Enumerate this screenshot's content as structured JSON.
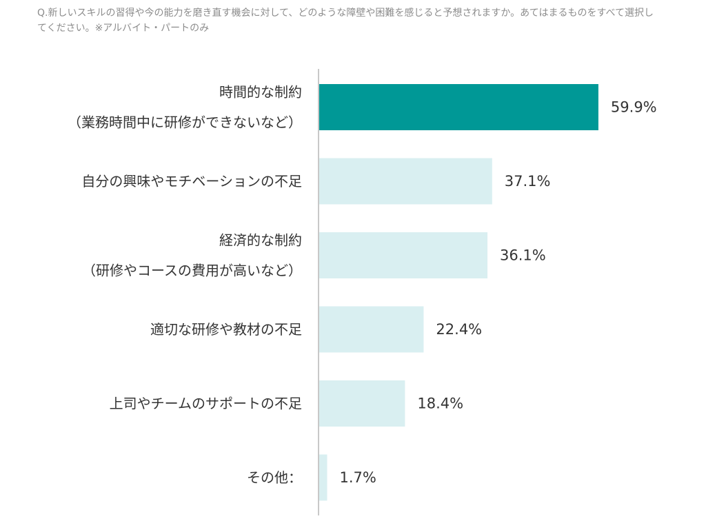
{
  "question": "Q.新しいスキルの習得や今の能力を磨き直す機会に対して、どのような障壁や困難を感じると予想されますか。あてはまるものをすべて選択してください。※アルバイト・パートのみ",
  "colors": {
    "highlight": "#009896",
    "default": "#d9eff1",
    "axis": "#c8c8c8"
  },
  "chart_data": {
    "type": "bar",
    "orientation": "horizontal",
    "categories": [
      [
        "時間的な制約",
        "（業務時間中に研修ができないなど）"
      ],
      [
        "自分の興味やモチベーションの不足"
      ],
      [
        "経済的な制約",
        "（研修やコースの費用が高いなど）"
      ],
      [
        "適切な研修や教材の不足"
      ],
      [
        "上司やチームのサポートの不足"
      ],
      [
        "その他："
      ]
    ],
    "values": [
      59.9,
      37.1,
      36.1,
      22.4,
      18.4,
      1.7
    ],
    "value_labels": [
      "59.9%",
      "37.1%",
      "36.1%",
      "22.4%",
      "18.4%",
      "1.7%"
    ],
    "highlight_index": 0,
    "xlim": [
      0,
      100
    ],
    "grid": false,
    "legend": "none"
  }
}
